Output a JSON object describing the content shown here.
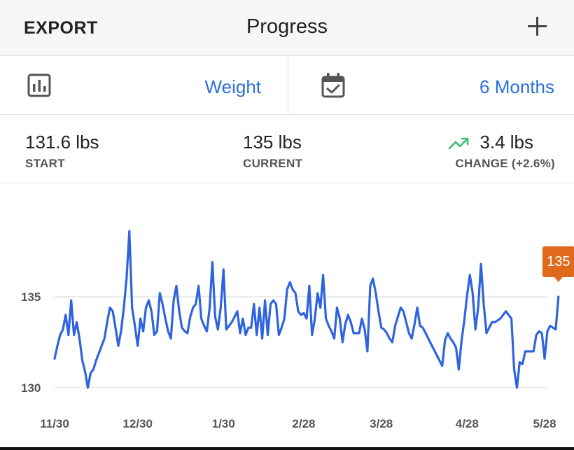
{
  "header": {
    "export_label": "EXPORT",
    "title": "Progress",
    "add_icon": "plus-icon"
  },
  "selectors": {
    "metric": {
      "icon": "bar-chart-icon",
      "label": "Weight"
    },
    "range": {
      "icon": "calendar-check-icon",
      "label": "6 Months"
    }
  },
  "stats": {
    "start": {
      "value": "131.6 lbs",
      "label": "START"
    },
    "current": {
      "value": "135 lbs",
      "label": "CURRENT"
    },
    "change": {
      "value": "3.4 lbs",
      "label": "CHANGE (+2.6%)",
      "icon": "trending-up-icon",
      "icon_color": "#3cba6f"
    }
  },
  "colors": {
    "accent": "#2b6fdc",
    "line": "#2f63e0",
    "badge": "#e06a1b",
    "grid": "#e3e3e3"
  },
  "chart_data": {
    "type": "line",
    "y_ticks": [
      135,
      130
    ],
    "ylim": [
      129.2,
      139.7
    ],
    "x_tick_labels": [
      "11/30",
      "12/30",
      "1/30",
      "2/28",
      "3/28",
      "4/28",
      "5/28"
    ],
    "x_tick_index": [
      0,
      30,
      61,
      90,
      118,
      149,
      177
    ],
    "x_range": [
      0,
      178
    ],
    "last_value_label": "135",
    "series": [
      {
        "values": [
          131.6,
          132.3,
          132.9,
          133.2,
          134.0,
          132.9,
          134.8,
          132.9,
          133.6,
          132.7,
          131.5,
          130.9,
          130.0,
          130.8,
          131.0,
          131.5,
          131.9,
          132.3,
          132.7,
          133.6,
          134.4,
          134.2,
          133.3,
          132.3,
          133.1,
          134.4,
          136.0,
          138.6,
          134.4,
          133.4,
          132.3,
          133.8,
          133.1,
          134.4,
          134.8,
          134.2,
          132.9,
          133.1,
          135.2,
          134.6,
          133.8,
          133.1,
          132.7,
          134.8,
          135.6,
          134.2,
          133.3,
          133.1,
          133.0,
          133.9,
          134.4,
          134.6,
          135.6,
          133.8,
          133.4,
          133.1,
          134.4,
          136.9,
          133.9,
          133.2,
          134.4,
          136.5,
          133.2,
          133.4,
          133.6,
          133.9,
          134.2,
          133.0,
          133.8,
          132.9,
          133.3,
          133.3,
          134.6,
          132.9,
          134.4,
          132.7,
          134.8,
          132.9,
          134.6,
          134.8,
          134.6,
          132.9,
          133.3,
          133.8,
          135.4,
          135.8,
          135.4,
          135.2,
          134.2,
          134.0,
          134.1,
          133.8,
          135.6,
          132.9,
          133.8,
          135.2,
          134.4,
          136.2,
          133.8,
          133.4,
          133.1,
          132.7,
          134.4,
          133.8,
          132.5,
          133.5,
          134.0,
          133.6,
          133.0,
          133.0,
          133.0,
          133.8,
          133.2,
          132.0,
          135.6,
          136.0,
          135.2,
          134.2,
          133.3,
          133.2,
          133.0,
          132.7,
          132.5,
          133.4,
          133.9,
          134.4,
          134.2,
          133.6,
          133.0,
          132.7,
          133.5,
          134.4,
          133.4,
          133.3,
          133.0,
          132.7,
          132.4,
          132.1,
          131.8,
          131.5,
          131.2,
          132.6,
          133.0,
          132.7,
          132.5,
          132.2,
          131.0,
          132.6,
          133.7,
          135.1,
          136.2,
          135.2,
          133.2,
          134.4,
          136.8,
          134.6,
          133.0,
          133.3,
          133.6,
          133.6,
          133.7,
          133.8,
          134.0,
          134.2,
          134.0,
          133.8,
          131.0,
          130.0,
          131.4,
          131.3,
          132.0,
          132.0,
          132.0,
          132.0,
          132.9,
          133.1,
          133.0,
          131.6,
          133.1,
          133.4,
          133.3,
          133.2,
          135.0
        ]
      }
    ]
  }
}
